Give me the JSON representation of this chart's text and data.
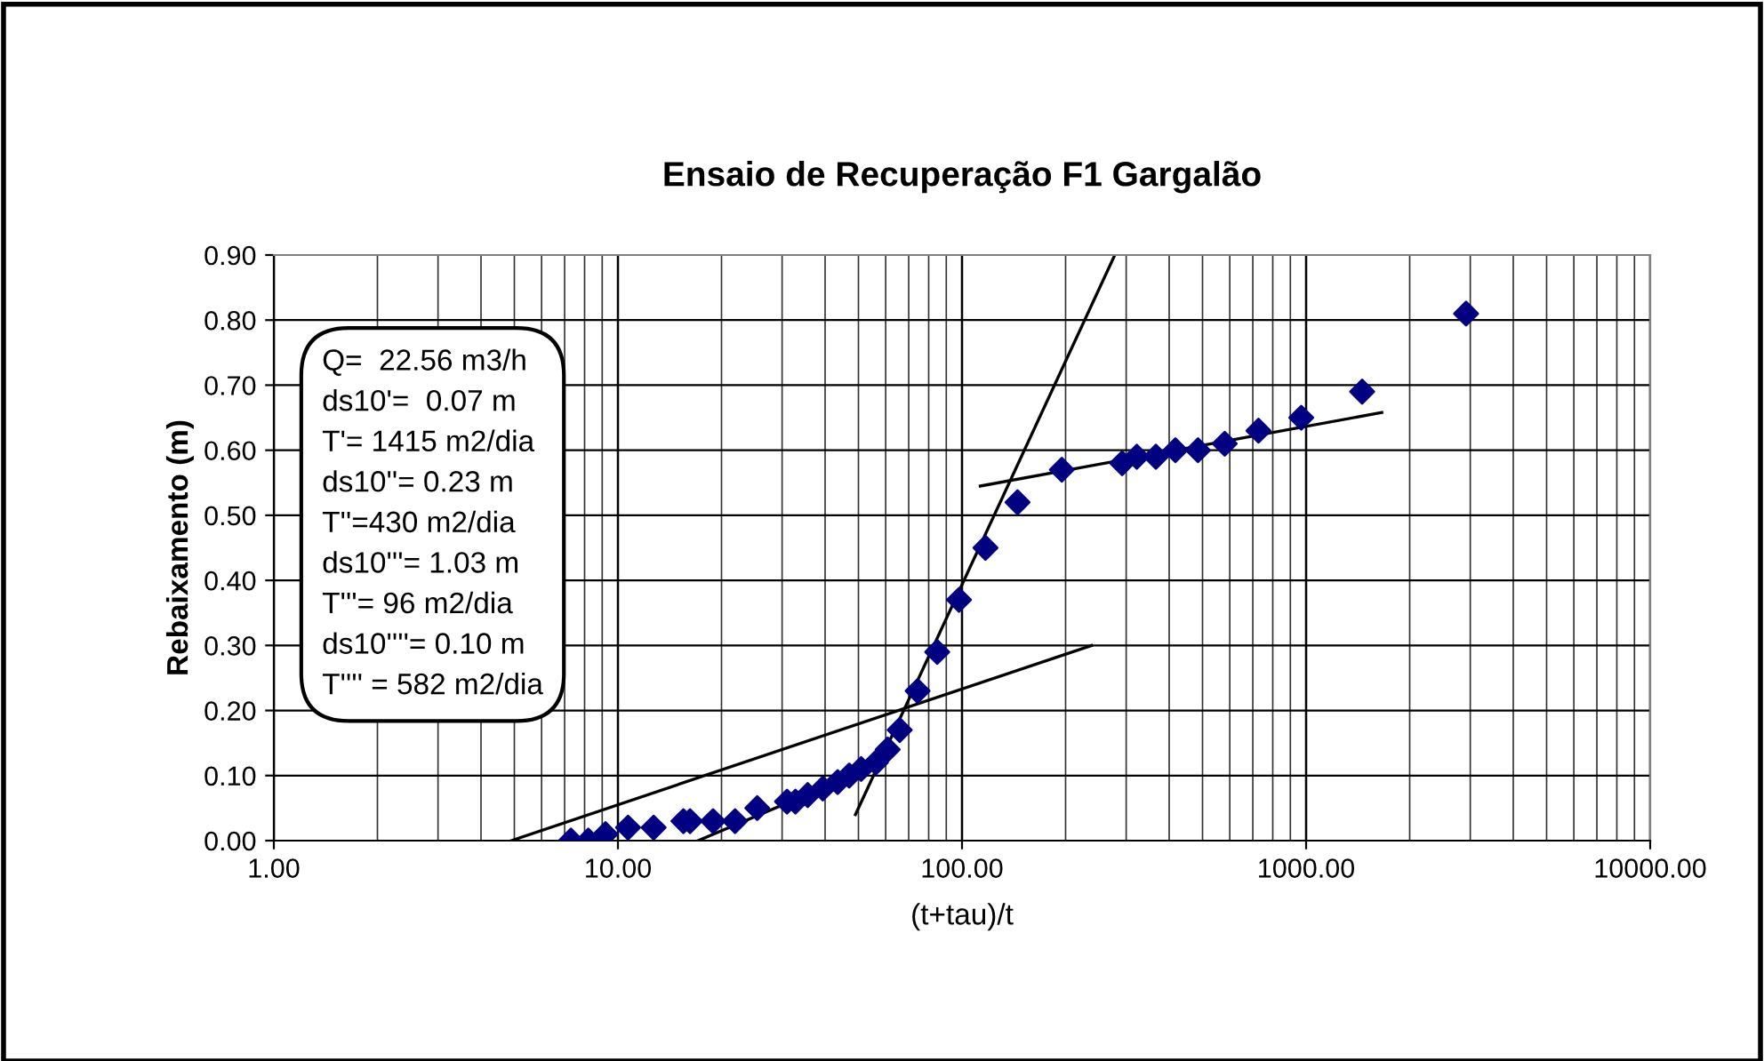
{
  "chart_data": {
    "type": "scatter",
    "title": "Ensaio de Recuperação F1 Gargalão",
    "xlabel": "(t+tau)/t",
    "ylabel": "Rebaixamento (m)",
    "log": "x",
    "grid": true,
    "legend": false,
    "xlim": [
      1,
      10000
    ],
    "xticks": [
      {
        "value": 1,
        "label": "1.00"
      },
      {
        "value": 10,
        "label": "10.00"
      },
      {
        "value": 100,
        "label": "100.00"
      },
      {
        "value": 1000,
        "label": "1000.00"
      },
      {
        "value": 10000,
        "label": "10000.00"
      }
    ],
    "ylim": [
      0,
      0.9
    ],
    "yticks": [
      {
        "value": 0,
        "label": "0.00"
      },
      {
        "value": 0.1,
        "label": "0.10"
      },
      {
        "value": 0.2,
        "label": "0.20"
      },
      {
        "value": 0.3,
        "label": "0.30"
      },
      {
        "value": 0.4,
        "label": "0.40"
      },
      {
        "value": 0.5,
        "label": "0.50"
      },
      {
        "value": 0.6,
        "label": "0.60"
      },
      {
        "value": 0.7,
        "label": "0.70"
      },
      {
        "value": 0.8,
        "label": "0.80"
      },
      {
        "value": 0.9,
        "label": "0.90"
      }
    ],
    "annotations": [
      "Q=  22.56 m3/h",
      "ds10'=  0.07 m",
      "T'= 1415 m2/dia",
      "ds10''= 0.23 m",
      "T''=430 m2/dia",
      "ds10'''= 1.03 m",
      "T'''= 96 m2/dia",
      "ds10''''= 0.10 m",
      "T'''' = 582 m2/dia"
    ],
    "series": [
      {
        "marker": "diamond",
        "color": "#000080",
        "x": [
          7.3,
          8.2,
          9.2,
          10.7,
          12.7,
          15.5,
          16.2,
          18.9,
          21.9,
          25.4,
          31,
          32.8,
          35.6,
          39.4,
          43.5,
          47,
          50.9,
          56.2,
          60.8,
          65.9,
          74.3,
          84.7,
          98,
          117,
          145,
          195,
          292,
          322,
          366,
          417,
          485,
          580,
          727,
          968,
          1455,
          2917
        ],
        "values": [
          0,
          0,
          0.01,
          0.02,
          0.02,
          0.03,
          0.03,
          0.03,
          0.03,
          0.05,
          0.06,
          0.06,
          0.07,
          0.08,
          0.09,
          0.1,
          0.11,
          0.12,
          0.14,
          0.17,
          0.23,
          0.29,
          0.37,
          0.45,
          0.52,
          0.57,
          0.58,
          0.59,
          0.59,
          0.6,
          0.6,
          0.61,
          0.63,
          0.65,
          0.69,
          0.81
        ]
      },
      {
        "type": "line",
        "marker": "none",
        "color": "#000000",
        "x": [
          4.9,
          238
        ],
        "values": [
          0,
          0.3
        ]
      },
      {
        "type": "line",
        "marker": "none",
        "color": "#000000",
        "x": [
          17.1,
          56
        ],
        "values": [
          0,
          0.115
        ]
      },
      {
        "type": "line",
        "marker": "none",
        "color": "#000000",
        "x": [
          49,
          278
        ],
        "values": [
          0.04,
          0.9
        ]
      },
      {
        "type": "line",
        "marker": "none",
        "color": "#000000",
        "x": [
          113,
          1660
        ],
        "values": [
          0.545,
          0.658
        ]
      }
    ]
  }
}
